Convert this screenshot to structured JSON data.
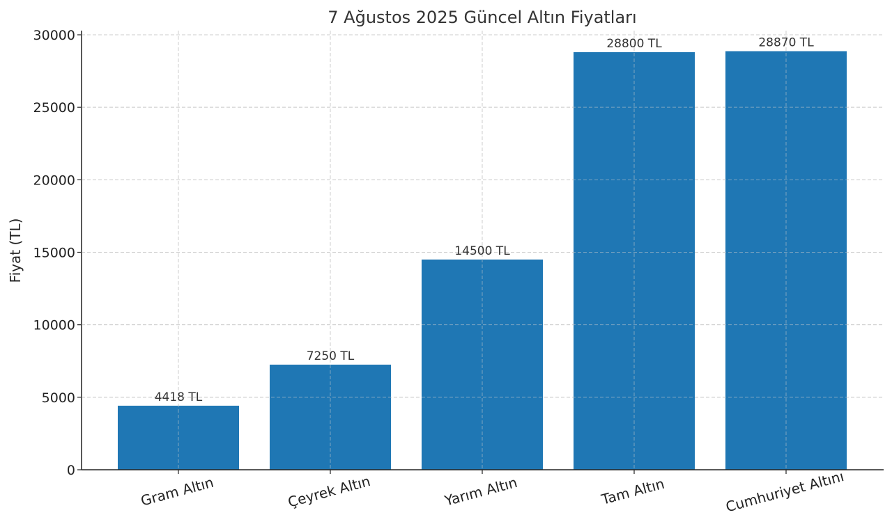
{
  "chart_data": {
    "type": "bar",
    "title": "7 Ağustos 2025 Güncel Altın Fiyatları",
    "xlabel": "",
    "ylabel": "Fiyat (TL)",
    "categories": [
      "Gram Altın",
      "Çeyrek Altın",
      "Yarım Altın",
      "Tam Altın",
      "Cumhuriyet Altını"
    ],
    "values": [
      4418,
      7250,
      14500,
      28800,
      28870
    ],
    "value_labels": [
      "4418 TL",
      "7250 TL",
      "14500 TL",
      "28800 TL",
      "28870 TL"
    ],
    "ylim": [
      0,
      30000
    ],
    "yticks": [
      0,
      5000,
      10000,
      15000,
      20000,
      25000,
      30000
    ],
    "ytick_labels": [
      "0",
      "5000",
      "10000",
      "15000",
      "20000",
      "25000",
      "30000"
    ],
    "grid": true,
    "bar_color": "#1f77b4"
  }
}
